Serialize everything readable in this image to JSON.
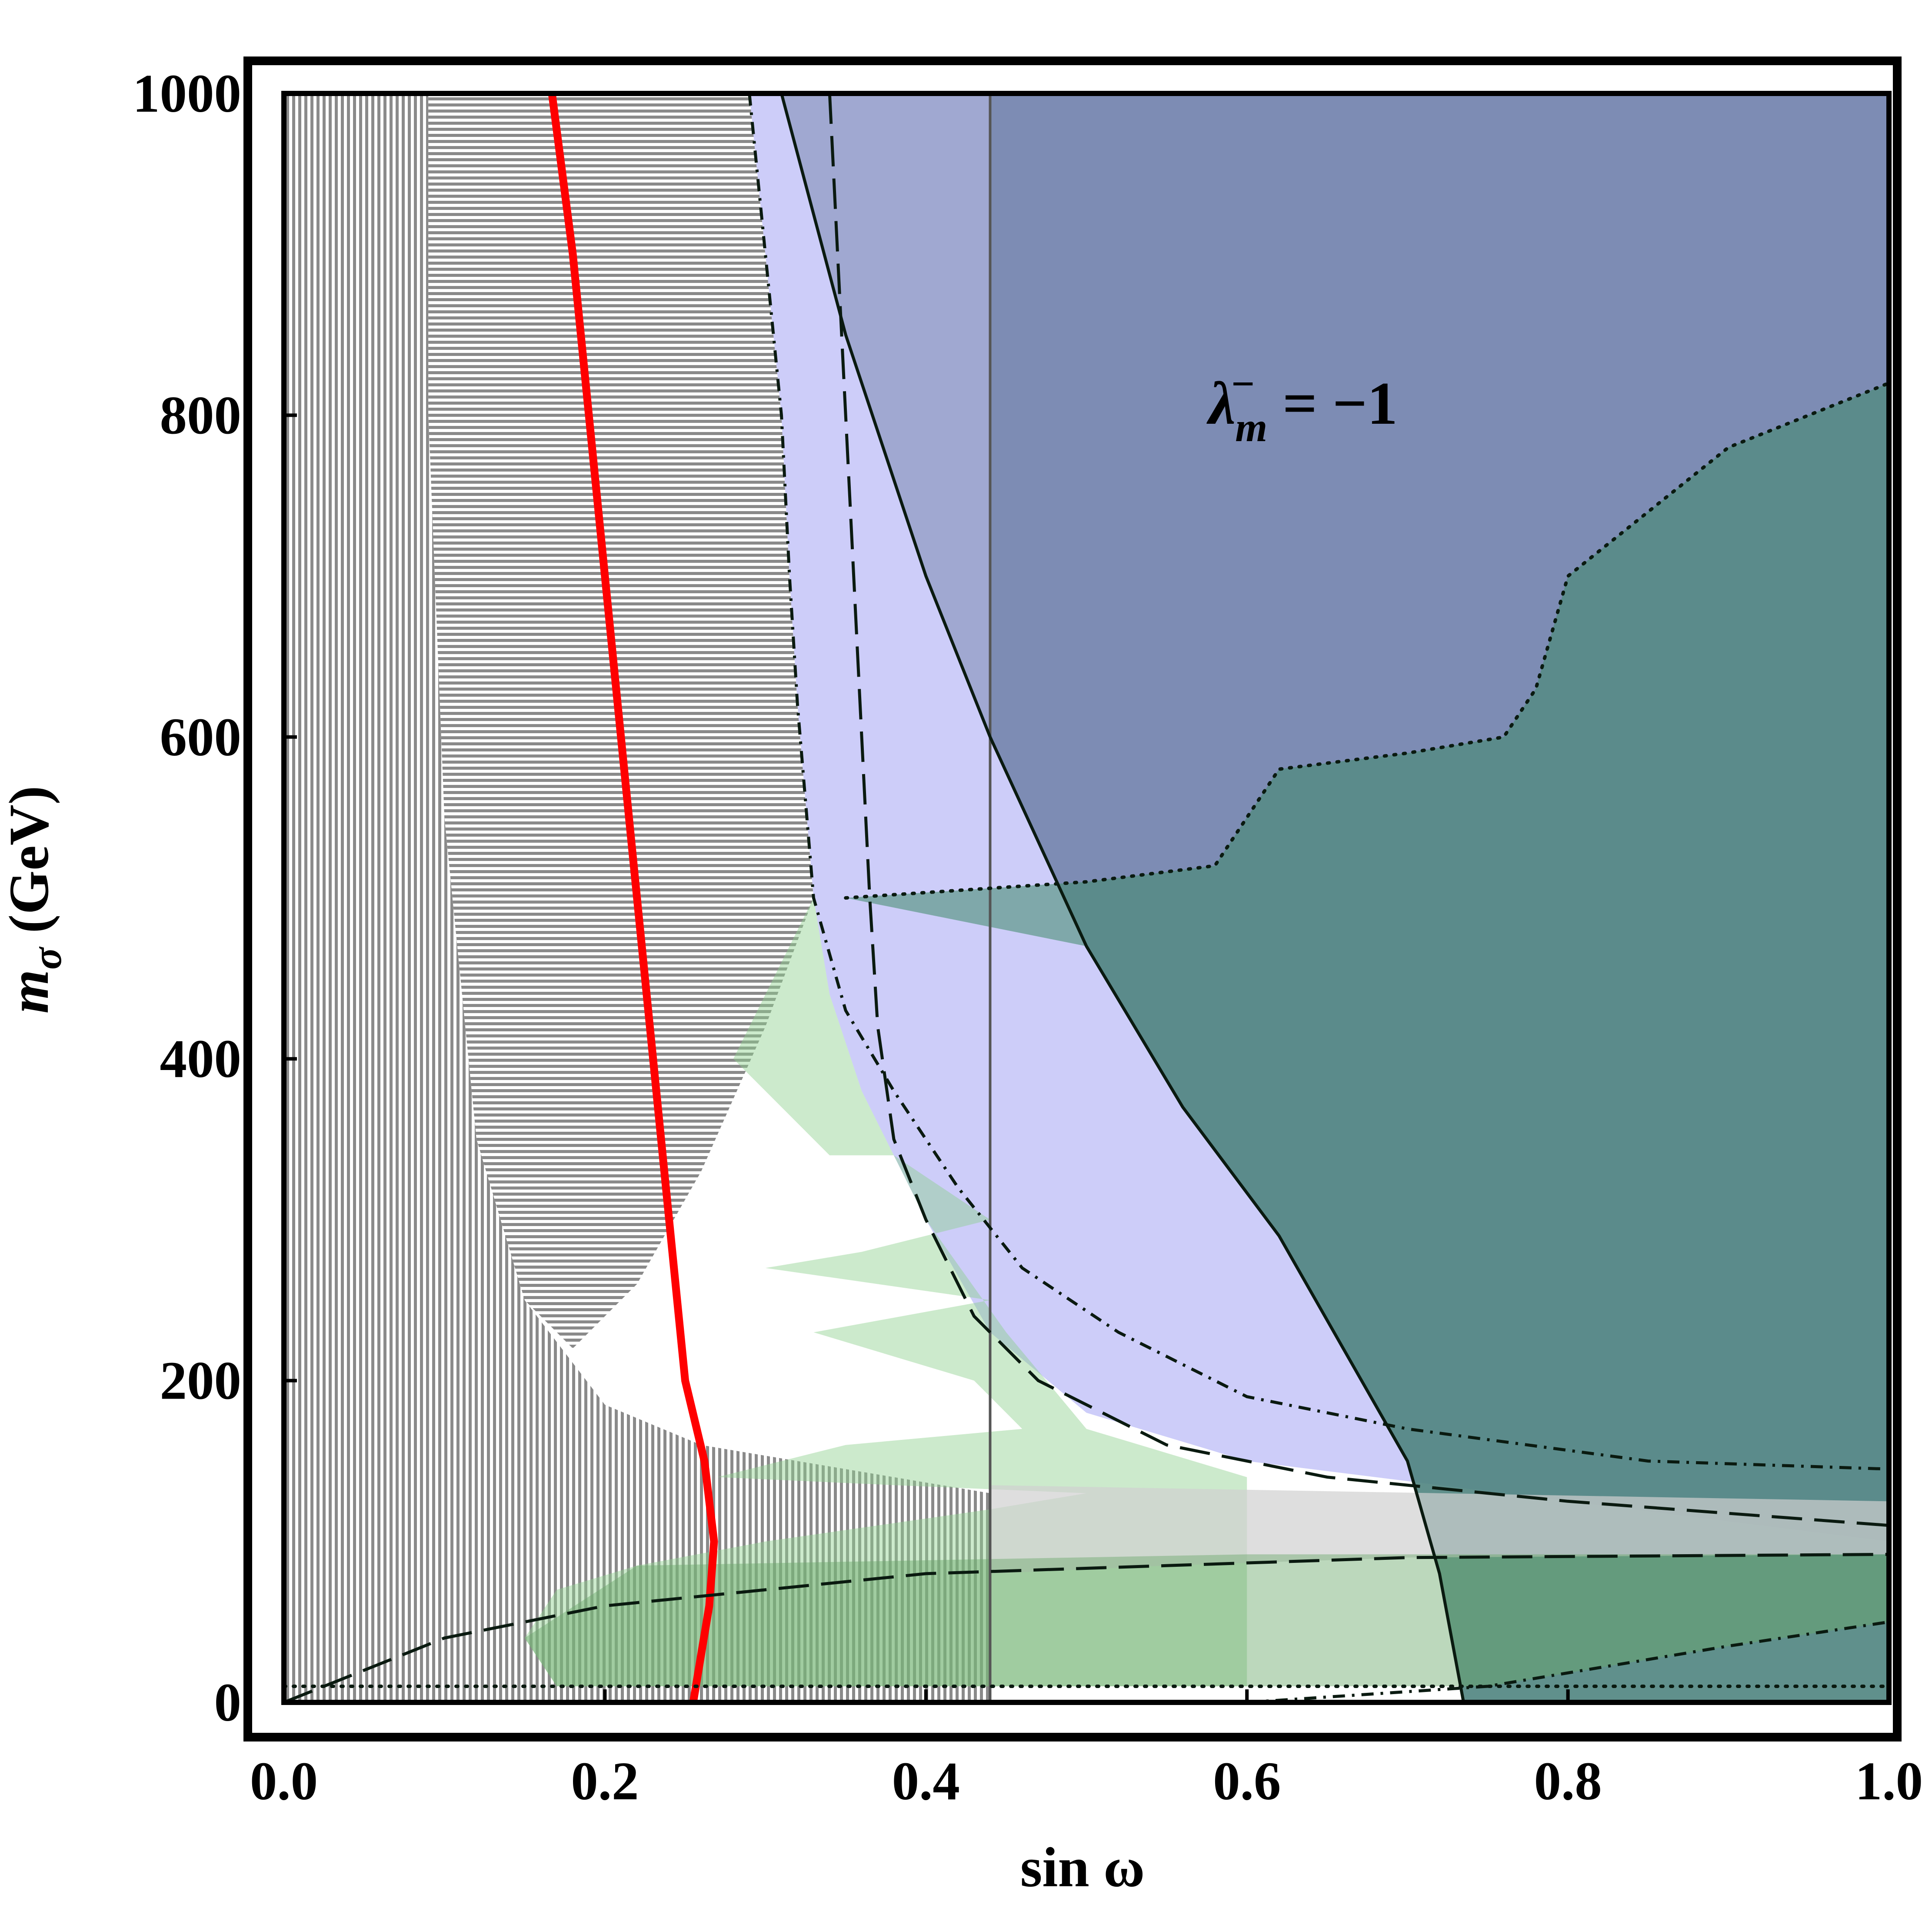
{
  "chart_data": {
    "type": "area",
    "title": "",
    "xlabel": "sin ω",
    "ylabel": "m_σ (GeV)",
    "ylabel_parts": {
      "main": "m",
      "sub": "σ",
      "unit": " (GeV)"
    },
    "xlim": [
      0.0,
      1.0
    ],
    "ylim": [
      0,
      1000
    ],
    "xticks": [
      "0.0",
      "0.2",
      "0.4",
      "0.6",
      "0.8",
      "1.0"
    ],
    "yticks": [
      "0",
      "200",
      "400",
      "600",
      "800",
      "1000"
    ],
    "annotation": {
      "text": "λ_m^- = −1",
      "symbol": "λ",
      "sup": "−",
      "sub": "m",
      "rest": " = −1"
    },
    "grid": false,
    "legend": "none",
    "vertical_line": {
      "x": 0.44
    },
    "colors": {
      "red_curve": "#ff0000",
      "blue_region": "#7b8bb0",
      "lavender_region": "#c8c8f8",
      "green_region": "#8fd08f",
      "teal_region": "#5a9585",
      "gray_hatch": "#7a7a7a"
    },
    "series": [
      {
        "style": "solid-red",
        "points": [
          [
            0.167,
            1000
          ],
          [
            0.18,
            900
          ],
          [
            0.19,
            800
          ],
          [
            0.2,
            700
          ],
          [
            0.21,
            600
          ],
          [
            0.22,
            500
          ],
          [
            0.23,
            400
          ],
          [
            0.24,
            300
          ],
          [
            0.25,
            200
          ],
          [
            0.262,
            150
          ],
          [
            0.268,
            100
          ],
          [
            0.265,
            60
          ],
          [
            0.26,
            30
          ],
          [
            0.255,
            0
          ]
        ]
      },
      {
        "style": "solid-black",
        "points": [
          [
            0.31,
            1000
          ],
          [
            0.35,
            850
          ],
          [
            0.4,
            700
          ],
          [
            0.44,
            600
          ],
          [
            0.5,
            470
          ],
          [
            0.56,
            370
          ],
          [
            0.62,
            290
          ],
          [
            0.66,
            220
          ],
          [
            0.7,
            150
          ],
          [
            0.72,
            80
          ],
          [
            0.735,
            0
          ]
        ]
      },
      {
        "style": "dashed",
        "points": [
          [
            0.34,
            1000
          ],
          [
            0.345,
            900
          ],
          [
            0.35,
            800
          ],
          [
            0.355,
            700
          ],
          [
            0.36,
            600
          ],
          [
            0.365,
            500
          ],
          [
            0.37,
            420
          ],
          [
            0.38,
            350
          ],
          [
            0.4,
            300
          ],
          [
            0.43,
            240
          ],
          [
            0.47,
            200
          ],
          [
            0.55,
            160
          ],
          [
            0.65,
            140
          ],
          [
            0.8,
            125
          ],
          [
            1.0,
            110
          ]
        ]
      },
      {
        "style": "dashed",
        "points": [
          [
            0.0,
            0
          ],
          [
            0.05,
            20
          ],
          [
            0.1,
            40
          ],
          [
            0.2,
            60
          ],
          [
            0.3,
            70
          ],
          [
            0.4,
            80
          ],
          [
            0.55,
            85
          ],
          [
            0.7,
            90
          ],
          [
            1.0,
            92
          ]
        ]
      },
      {
        "style": "dash-dot",
        "points": [
          [
            0.29,
            1000
          ],
          [
            0.3,
            900
          ],
          [
            0.31,
            800
          ],
          [
            0.315,
            700
          ],
          [
            0.32,
            620
          ],
          [
            0.325,
            560
          ],
          [
            0.33,
            500
          ],
          [
            0.35,
            430
          ],
          [
            0.38,
            380
          ],
          [
            0.42,
            320
          ],
          [
            0.46,
            270
          ],
          [
            0.52,
            230
          ],
          [
            0.6,
            190
          ],
          [
            0.7,
            170
          ],
          [
            0.85,
            150
          ],
          [
            1.0,
            145
          ]
        ]
      },
      {
        "style": "dash-dot",
        "points": [
          [
            0.6,
            0
          ],
          [
            0.75,
            10
          ],
          [
            0.9,
            35
          ],
          [
            1.0,
            50
          ]
        ]
      },
      {
        "style": "dotted",
        "points": [
          [
            0.35,
            500
          ],
          [
            0.5,
            510
          ],
          [
            0.58,
            520
          ],
          [
            0.62,
            580
          ],
          [
            0.7,
            590
          ],
          [
            0.76,
            600
          ],
          [
            0.78,
            630
          ],
          [
            0.8,
            700
          ],
          [
            0.85,
            740
          ],
          [
            0.9,
            780
          ],
          [
            1.0,
            820
          ]
        ]
      },
      {
        "style": "dotted",
        "points": [
          [
            0.0,
            10
          ],
          [
            1.0,
            10
          ]
        ]
      }
    ]
  }
}
